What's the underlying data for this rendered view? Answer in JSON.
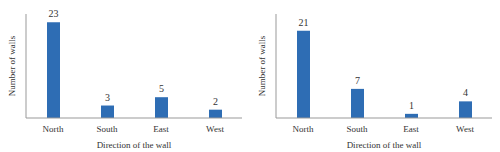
{
  "chart_data": [
    {
      "type": "bar",
      "categories": [
        "North",
        "South",
        "East",
        "West"
      ],
      "values": [
        23,
        3,
        5,
        2
      ],
      "color": "#2e6db4",
      "x_label": "Direction of the wall",
      "y_label": "Number of walls",
      "ylim": [
        0,
        25
      ],
      "data_labels": true,
      "tick_labels": "x"
    },
    {
      "type": "bar",
      "categories": [
        "North",
        "South",
        "East",
        "West"
      ],
      "values": [
        21,
        7,
        1,
        4
      ],
      "color": "#2e6db4",
      "x_label": "Direction of the wall",
      "y_label": "Number of walls",
      "ylim": [
        0,
        25
      ],
      "data_labels": true,
      "tick_labels": "x"
    }
  ]
}
